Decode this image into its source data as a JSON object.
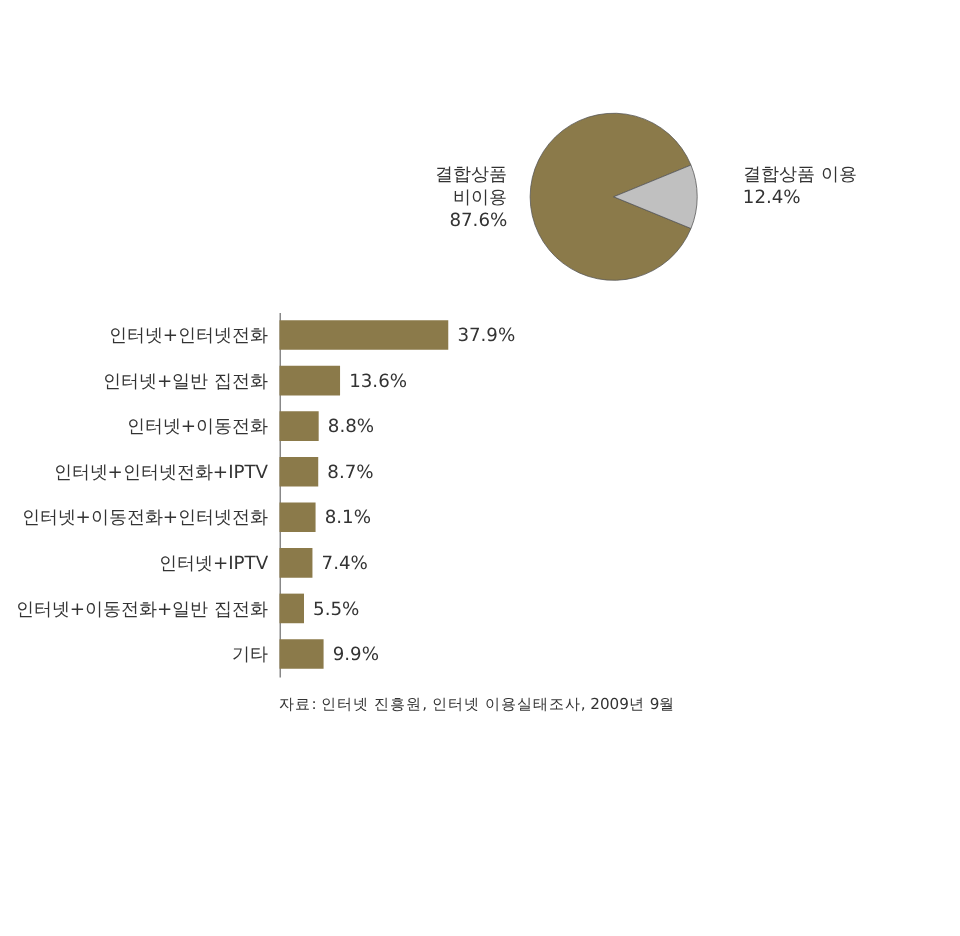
{
  "chart_data": [
    {
      "type": "pie",
      "categories": [
        "결합상품 비이용",
        "결합상품 이용"
      ],
      "values": [
        87.6,
        12.4
      ],
      "colors": [
        "#8b7a4a",
        "#c0c0c0"
      ],
      "value_labels": [
        "87.6%",
        "12.4%"
      ],
      "legend": false
    },
    {
      "type": "bar",
      "orientation": "horizontal",
      "categories": [
        "인터넷+인터넷전화",
        "인터넷+일반 집전화",
        "인터넷+이동전화",
        "인터넷+인터넷전화+IPTV",
        "인터넷+이동전화+인터넷전화",
        "인터넷+IPTV",
        "인터넷+이동전화+일반 집전화",
        "기타"
      ],
      "values": [
        37.9,
        13.6,
        8.8,
        8.7,
        8.1,
        7.4,
        5.5,
        9.9
      ],
      "color": "#8b7a4a",
      "value_labels": [
        "37.9%",
        "13.6%",
        "8.8%",
        "8.7%",
        "8.1%",
        "7.4%",
        "5.5%",
        "9.9%"
      ],
      "tick_labels": "y",
      "annotations": [
        "자료: 인터넷 진흥원, 인터넷 이용실태조사, 2009년 9월"
      ]
    }
  ]
}
